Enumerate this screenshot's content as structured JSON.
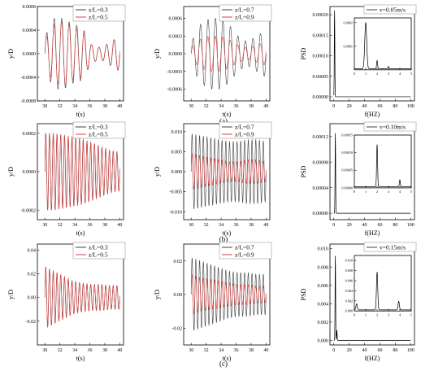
{
  "colors": {
    "black_series": "#404040",
    "red_series": "#e04040",
    "axis": "#000000"
  },
  "captions": [
    "(a)",
    "(b)",
    "(c)"
  ],
  "chart_data": [
    {
      "id": "a1",
      "type": "line",
      "row": 0,
      "col": 0,
      "xlabel": "t(s)",
      "ylabel": "y/D",
      "xlim": [
        29,
        40.5
      ],
      "ylim": [
        -0.0008,
        0.0008
      ],
      "xticks": [
        "30",
        "32",
        "34",
        "36",
        "38",
        "40"
      ],
      "xtick_values": [
        30,
        32,
        34,
        36,
        38,
        40
      ],
      "yticks": [
        "-0.0008",
        "-0.0004",
        "0.0000",
        "0.0004",
        "0.0008"
      ],
      "ytick_values": [
        -0.0008,
        -0.0004,
        0,
        0.0004,
        0.0008
      ],
      "series": [
        {
          "name": "z/L=0.3",
          "color": "#404040",
          "freq_hz": 1.0,
          "amplitudes": [
            0.0003,
            0.0006,
            0.0006,
            0.0005,
            0.00045,
            0.00015,
            0.0001,
            0.0002,
            0.0003
          ]
        },
        {
          "name": "z/L=0.5",
          "color": "#e04040",
          "freq_hz": 1.0,
          "amplitudes": [
            0.00025,
            0.0005,
            0.00055,
            0.00045,
            0.0004,
            0.00015,
            0.0001,
            0.0002,
            0.0003
          ]
        }
      ]
    },
    {
      "id": "a2",
      "type": "line",
      "row": 0,
      "col": 1,
      "xlabel": "t(s)",
      "ylabel": "y/D",
      "xlim": [
        29,
        40.5
      ],
      "ylim": [
        -0.0008,
        0.0008
      ],
      "xticks": [
        "30",
        "32",
        "34",
        "36",
        "38",
        "40"
      ],
      "xtick_values": [
        30,
        32,
        34,
        36,
        38,
        40
      ],
      "yticks": [
        "-0.0006",
        "-0.0003",
        "0.0000",
        "0.0003",
        "0.0006"
      ],
      "ytick_values": [
        -0.0006,
        -0.0003,
        0,
        0.0003,
        0.0006
      ],
      "series": [
        {
          "name": "z/L=0.7",
          "color": "#404040",
          "freq_hz": 1.0,
          "amplitudes": [
            0.0002,
            0.0005,
            0.0006,
            0.0006,
            0.0005,
            0.0003,
            0.0002,
            0.0003,
            0.0004
          ]
        },
        {
          "name": "z/L=0.9",
          "color": "#e04040",
          "freq_hz": 1.0,
          "amplitudes": [
            0.0001,
            0.00025,
            0.0003,
            0.0003,
            0.00025,
            0.00015,
            0.0001,
            0.00015,
            0.0002
          ]
        }
      ]
    },
    {
      "id": "a3",
      "type": "line",
      "row": 0,
      "col": 2,
      "xlabel": "f(HZ)",
      "ylabel": "PSD",
      "xlim": [
        -5,
        105
      ],
      "ylim": [
        -1e-05,
        0.00022
      ],
      "xticks": [
        "0",
        "20",
        "40",
        "60",
        "80",
        "100"
      ],
      "xtick_values": [
        0,
        20,
        40,
        60,
        80,
        100
      ],
      "yticks": [
        "0.00000",
        "0.00005",
        "0.00010",
        "0.00015",
        "0.00020"
      ],
      "ytick_values": [
        0,
        5e-05,
        0.0001,
        0.00015,
        0.0002
      ],
      "main_peaks": [
        {
          "x": 1.0,
          "y": 0.00021
        }
      ],
      "series": [
        {
          "name": "v=0.05m/s",
          "color": "#404040"
        }
      ],
      "inset": {
        "xlim": [
          0,
          5
        ],
        "ylim": [
          0,
          0.00022
        ],
        "xticks": [
          "0",
          "1",
          "2",
          "3",
          "4",
          "5"
        ],
        "xtick_values": [
          0,
          1,
          2,
          3,
          4,
          5
        ],
        "yticks": [
          "0.0001",
          "0.0002"
        ],
        "ytick_values": [
          0.0001,
          0.0002
        ],
        "peaks": [
          {
            "x": 1.0,
            "y": 0.000195,
            "w": 0.12
          },
          {
            "x": 2.0,
            "y": 3.5e-05,
            "w": 0.06
          },
          {
            "x": 3.0,
            "y": 1e-05,
            "w": 0.06
          }
        ]
      }
    },
    {
      "id": "b1",
      "type": "line",
      "row": 1,
      "col": 0,
      "xlabel": "t(s)",
      "ylabel": "y/D",
      "xlim": [
        29,
        40.5
      ],
      "ylim": [
        -0.00025,
        0.00025
      ],
      "xticks": [
        "30",
        "32",
        "34",
        "36",
        "38",
        "40"
      ],
      "xtick_values": [
        30,
        32,
        34,
        36,
        38,
        40
      ],
      "yticks": [
        "-0.0002",
        "0.0000",
        "0.0002"
      ],
      "ytick_values": [
        -0.0002,
        0,
        0.0002
      ],
      "series": [
        {
          "name": "z/L=0.3",
          "color": "#404040",
          "freq_hz": 2.0,
          "amplitudes": [
            0.0002,
            0.0002,
            0.00019,
            0.00018,
            0.00017,
            0.00015,
            0.00013,
            0.00011,
            0.0001
          ]
        },
        {
          "name": "z/L=0.5",
          "color": "#e04040",
          "freq_hz": 2.0,
          "amplitudes": [
            0.0002,
            0.0002,
            0.00019,
            0.00018,
            0.00017,
            0.00015,
            0.00013,
            0.00011,
            0.0001
          ]
        }
      ]
    },
    {
      "id": "b2",
      "type": "line",
      "row": 1,
      "col": 1,
      "xlabel": "t(s)",
      "ylabel": "y/D",
      "xlim": [
        29,
        40.5
      ],
      "ylim": [
        -0.012,
        0.012
      ],
      "xticks": [
        "30",
        "32",
        "34",
        "36",
        "38",
        "40"
      ],
      "xtick_values": [
        30,
        32,
        34,
        36,
        38,
        40
      ],
      "yticks": [
        "-0.010",
        "-0.005",
        "0.000",
        "0.005",
        "0.010"
      ],
      "ytick_values": [
        -0.01,
        -0.005,
        0,
        0.005,
        0.01
      ],
      "series": [
        {
          "name": "z/L=0.7",
          "color": "#404040",
          "freq_hz": 2.0,
          "amplitudes": [
            0.0095,
            0.009,
            0.0085,
            0.008,
            0.0075,
            0.0075,
            0.008,
            0.008,
            0.0075
          ]
        },
        {
          "name": "z/L=0.9",
          "color": "#e04040",
          "freq_hz": 2.0,
          "amplitudes": [
            0.0045,
            0.004,
            0.0035,
            0.003,
            0.0025,
            0.0025,
            0.003,
            0.003,
            0.0025
          ]
        }
      ]
    },
    {
      "id": "b3",
      "type": "line",
      "row": 1,
      "col": 2,
      "xlabel": "f(HZ)",
      "ylabel": "PSD",
      "xlim": [
        -5,
        105
      ],
      "ylim": [
        -1e-05,
        0.00014
      ],
      "xticks": [
        "0",
        "20",
        "40",
        "60",
        "80",
        "100"
      ],
      "xtick_values": [
        0,
        20,
        40,
        60,
        80,
        100
      ],
      "yticks": [
        "0.00000",
        "0.00004",
        "0.00008",
        "0.00012"
      ],
      "ytick_values": [
        0,
        4e-05,
        8e-05,
        0.00012
      ],
      "main_peaks": [
        {
          "x": 2.0,
          "y": 0.000125
        }
      ],
      "series": [
        {
          "name": "v=0.10m/s",
          "color": "#404040"
        }
      ],
      "inset": {
        "xlim": [
          0,
          5
        ],
        "ylim": [
          0,
          0.00015
        ],
        "xticks": [
          "0",
          "1",
          "2",
          "3",
          "4",
          "5"
        ],
        "xtick_values": [
          0,
          1,
          2,
          3,
          4,
          5
        ],
        "yticks": [
          "0.00000",
          "0.00005",
          "0.00010",
          "0.00015"
        ],
        "ytick_values": [
          0,
          5e-05,
          0.0001,
          0.00015
        ],
        "peaks": [
          {
            "x": 2.0,
            "y": 0.00012,
            "w": 0.06
          },
          {
            "x": 4.0,
            "y": 2e-05,
            "w": 0.06
          }
        ]
      }
    },
    {
      "id": "c1",
      "type": "line",
      "row": 2,
      "col": 0,
      "xlabel": "t(s)",
      "ylabel": "y/D",
      "xlim": [
        29,
        40.5
      ],
      "ylim": [
        -0.04,
        0.045
      ],
      "xticks": [
        "30",
        "32",
        "34",
        "36",
        "38",
        "40"
      ],
      "xtick_values": [
        30,
        32,
        34,
        36,
        38,
        40
      ],
      "yticks": [
        "-0.02",
        "0.00",
        "0.02",
        "0.04"
      ],
      "ytick_values": [
        -0.02,
        0,
        0.02,
        0.04
      ],
      "series": [
        {
          "name": "z/L=0.3",
          "color": "#404040",
          "freq_hz": 2.0,
          "amplitudes": [
            0.026,
            0.022,
            0.018,
            0.014,
            0.012,
            0.011,
            0.011,
            0.01,
            0.01
          ]
        },
        {
          "name": "z/L=0.5",
          "color": "#e04040",
          "freq_hz": 2.0,
          "amplitudes": [
            0.026,
            0.022,
            0.018,
            0.014,
            0.012,
            0.011,
            0.011,
            0.01,
            0.01
          ]
        }
      ]
    },
    {
      "id": "c2",
      "type": "line",
      "row": 2,
      "col": 1,
      "xlabel": "t(s)",
      "ylabel": "y/D",
      "xlim": [
        29,
        40.5
      ],
      "ylim": [
        -0.03,
        0.03
      ],
      "xticks": [
        "30",
        "32",
        "34",
        "36",
        "38",
        "40"
      ],
      "xtick_values": [
        30,
        32,
        34,
        36,
        38,
        40
      ],
      "yticks": [
        "-0.02",
        "0.00",
        "0.02"
      ],
      "ytick_values": [
        -0.02,
        0,
        0.02
      ],
      "series": [
        {
          "name": "z/L=0.7",
          "color": "#404040",
          "freq_hz": 2.0,
          "amplitudes": [
            0.022,
            0.02,
            0.018,
            0.016,
            0.014,
            0.013,
            0.013,
            0.012,
            0.012
          ]
        },
        {
          "name": "z/L=0.9",
          "color": "#e04040",
          "freq_hz": 2.0,
          "amplitudes": [
            0.012,
            0.01,
            0.009,
            0.008,
            0.007,
            0.006,
            0.006,
            0.005,
            0.005
          ]
        }
      ]
    },
    {
      "id": "c3",
      "type": "line",
      "row": 2,
      "col": 2,
      "xlabel": "f(HZ)",
      "ylabel": "PSD",
      "xlim": [
        -5,
        105
      ],
      "ylim": [
        -0.0005,
        0.0105
      ],
      "xticks": [
        "0",
        "20",
        "40",
        "60",
        "80",
        "100"
      ],
      "xtick_values": [
        0,
        20,
        40,
        60,
        80,
        100
      ],
      "yticks": [
        "0.000",
        "0.002",
        "0.004",
        "0.006",
        "0.008",
        "0.010"
      ],
      "ytick_values": [
        0,
        0.002,
        0.004,
        0.006,
        0.008,
        0.01
      ],
      "main_peaks": [
        {
          "x": 2.0,
          "y": 0.0092
        },
        {
          "x": 4.0,
          "y": 0.0011
        }
      ],
      "series": [
        {
          "name": "v=0.15m/s",
          "color": "#404040"
        }
      ],
      "inset": {
        "xlim": [
          0,
          5
        ],
        "ylim": [
          0,
          0.011
        ],
        "xticks": [
          "0",
          "1",
          "2",
          "3",
          "4",
          "5"
        ],
        "xtick_values": [
          0,
          1,
          2,
          3,
          4,
          5
        ],
        "yticks": [
          "0.000",
          "0.002",
          "0.004",
          "0.006",
          "0.008",
          "0.010"
        ],
        "ytick_values": [
          0,
          0.002,
          0.004,
          0.006,
          0.008,
          0.01
        ],
        "peaks": [
          {
            "x": 0.2,
            "y": 0.0012,
            "w": 0.08
          },
          {
            "x": 2.0,
            "y": 0.0075,
            "w": 0.08
          },
          {
            "x": 3.9,
            "y": 0.0017,
            "w": 0.08
          }
        ]
      }
    }
  ]
}
